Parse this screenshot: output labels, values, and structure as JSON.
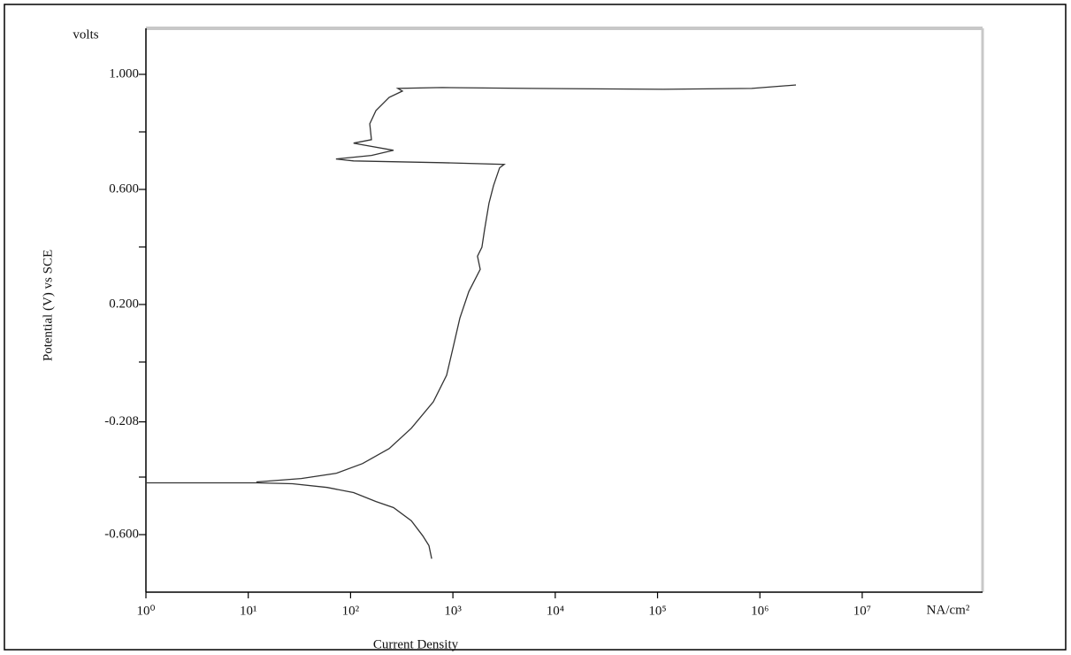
{
  "chart_data": {
    "type": "line",
    "y_label_top": "volts",
    "ylabel": "Potential (V) vs SCE",
    "xlabel": "Current Density",
    "xunit": "NA/cm²",
    "xscale": "log",
    "xlim": [
      1,
      150000000
    ],
    "ylim": [
      -0.8,
      1.16
    ],
    "xticks": [
      {
        "value": 1,
        "label": "10⁰"
      },
      {
        "value": 10,
        "label": "10¹"
      },
      {
        "value": 100,
        "label": "10²"
      },
      {
        "value": 1000,
        "label": "10³"
      },
      {
        "value": 10000,
        "label": "10⁴"
      },
      {
        "value": 100000,
        "label": "10⁵"
      },
      {
        "value": 1000000,
        "label": "10⁶"
      },
      {
        "value": 10000000,
        "label": "10⁷"
      }
    ],
    "yticks": [
      {
        "value": 1,
        "label": "1.000"
      },
      {
        "value": 0.6,
        "label": "0.600"
      },
      {
        "value": 0.2,
        "label": "0.200"
      },
      {
        "value": -0.208,
        "label": "-0.208"
      },
      {
        "value": -0.6,
        "label": "-0.600"
      }
    ],
    "yminorticks": [
      0.8,
      0.4,
      0,
      -0.4
    ],
    "color": "#333333",
    "x": [
      620,
      583,
      507,
      392,
      263,
      177,
      107,
      59,
      27,
      12,
      1,
      null,
      12,
      33,
      72,
      131,
      238,
      392,
      644,
      868,
      998,
      1170,
      1430,
      1850,
      1740,
      1920,
      2040,
      2250,
      2490,
      2860,
      3170,
      786,
      107,
      72,
      160,
      263,
      131,
      107,
      160,
      154,
      177,
      238,
      321,
      290,
      786,
      5750,
      114000,
      832000,
      2250000
    ],
    "values": [
      -0.684,
      -0.638,
      -0.604,
      -0.552,
      -0.506,
      -0.485,
      -0.454,
      -0.436,
      -0.423,
      -0.42,
      -0.42,
      null,
      -0.417,
      -0.405,
      -0.387,
      -0.353,
      -0.301,
      -0.23,
      -0.138,
      -0.046,
      0.046,
      0.153,
      0.245,
      0.322,
      0.368,
      0.399,
      0.46,
      0.552,
      0.613,
      0.675,
      0.687,
      0.693,
      0.699,
      0.706,
      0.718,
      0.736,
      0.755,
      0.761,
      0.773,
      0.828,
      0.874,
      0.92,
      0.942,
      0.951,
      0.954,
      0.951,
      0.948,
      0.951,
      0.963
    ]
  }
}
